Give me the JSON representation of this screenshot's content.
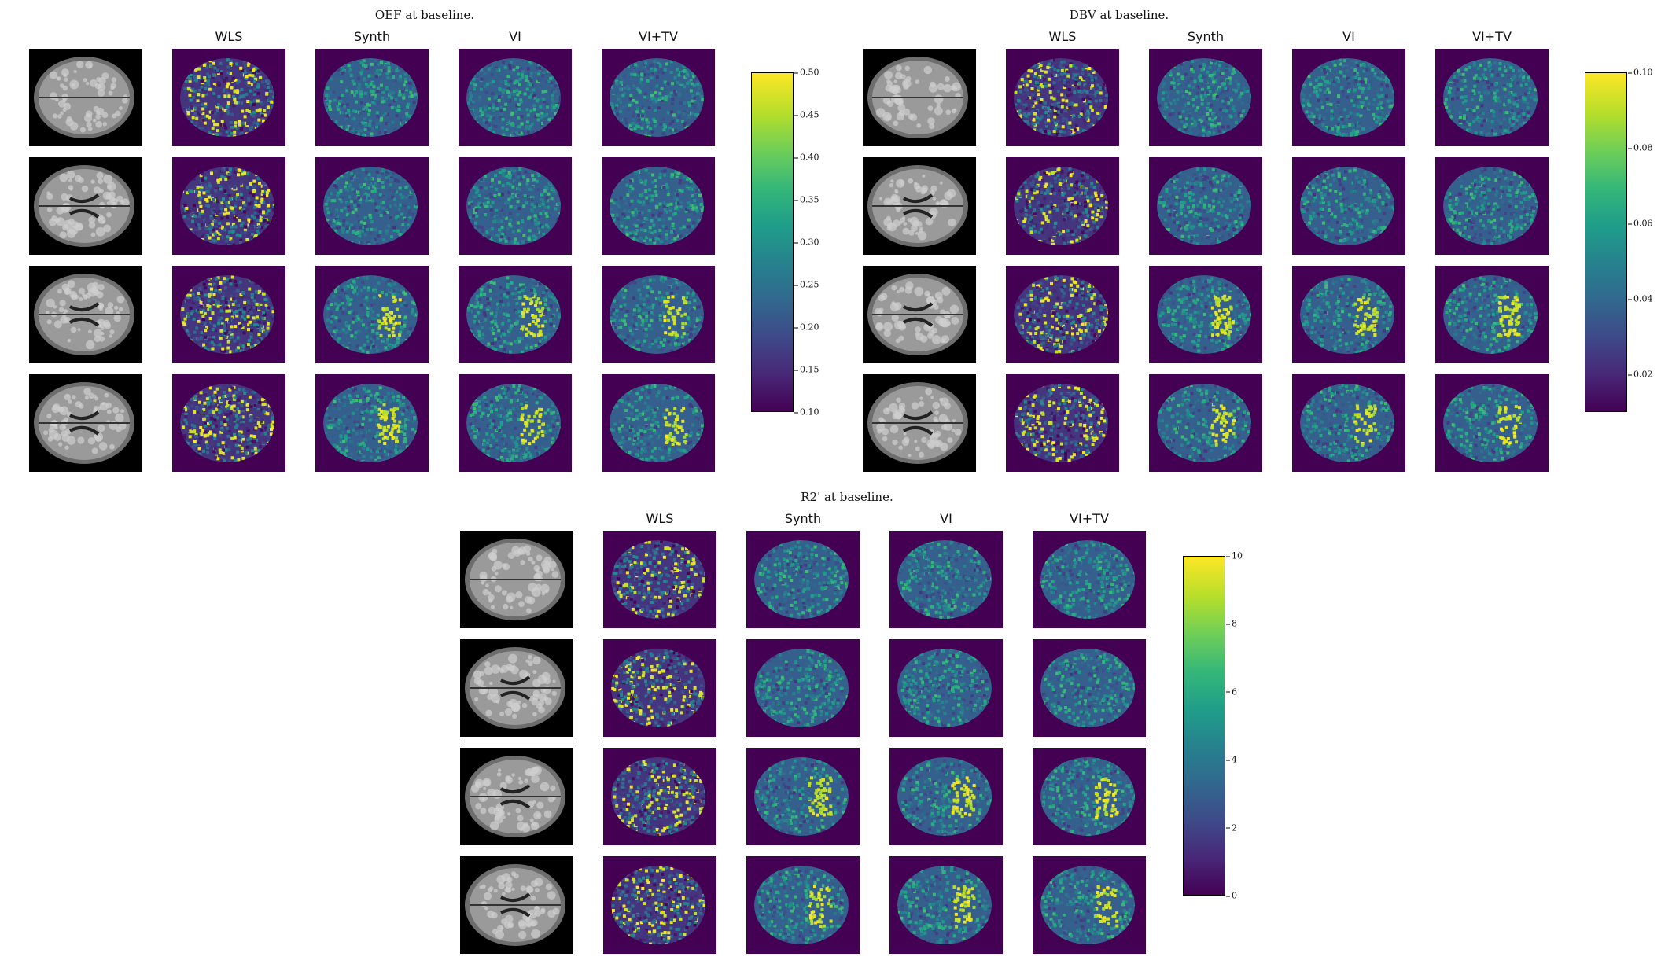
{
  "panels": [
    {
      "id": "oef",
      "title": "OEF at baseline.",
      "columns": [
        "WLS",
        "Synth",
        "VI",
        "VI+TV"
      ],
      "colorbar": {
        "ticks": [
          "0.50",
          "0.45",
          "0.40",
          "0.35",
          "0.30",
          "0.25",
          "0.20",
          "0.15",
          "0.10"
        ]
      },
      "rows": 4
    },
    {
      "id": "dbv",
      "title": "DBV at baseline.",
      "columns": [
        "WLS",
        "Synth",
        "VI",
        "VI+TV"
      ],
      "colorbar": {
        "ticks": [
          "0.10",
          "0.08",
          "0.06",
          "0.04",
          "0.02"
        ]
      },
      "rows": 4
    },
    {
      "id": "r2p",
      "title": "R2' at baseline.",
      "columns": [
        "WLS",
        "Synth",
        "VI",
        "VI+TV"
      ],
      "colorbar": {
        "ticks": [
          "10",
          "8",
          "6",
          "4",
          "2",
          "0"
        ]
      },
      "rows": 4
    }
  ],
  "colors": {
    "viridis_low": "#440154",
    "viridis_mid": "#21918c",
    "viridis_high": "#fde725"
  }
}
